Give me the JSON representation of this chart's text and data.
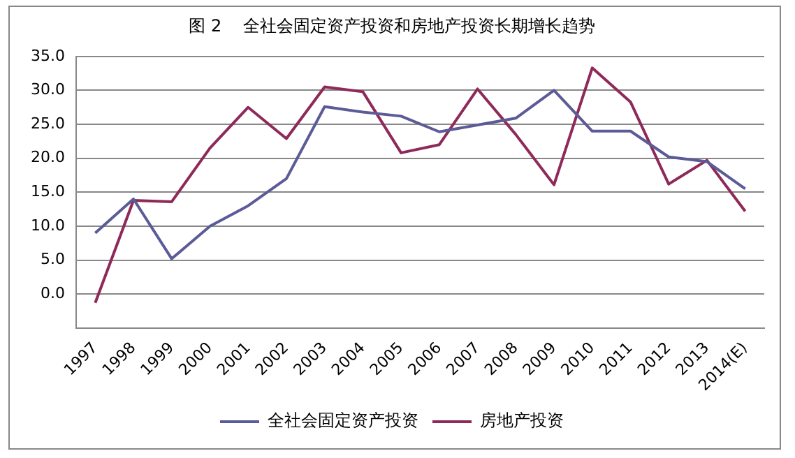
{
  "chart_data": {
    "type": "line",
    "title": "图 2    全社会固定资产投资和房地产投资长期增长趋势",
    "categories": [
      "1997",
      "1998",
      "1999",
      "2000",
      "2001",
      "2002",
      "2003",
      "2004",
      "2005",
      "2006",
      "2007",
      "2008",
      "2009",
      "2010",
      "2011",
      "2012",
      "2013",
      "2014(E)"
    ],
    "series": [
      {
        "name": "全社会固定资产投资",
        "color": "#5b5b97",
        "values": [
          9,
          14,
          5.2,
          10,
          13,
          17,
          27.6,
          26.8,
          26.2,
          23.9,
          24.9,
          25.9,
          30,
          24,
          24,
          20.2,
          19.5,
          15.5
        ]
      },
      {
        "name": "房地产投资",
        "color": "#8e2a5a",
        "values": [
          -1.3,
          13.8,
          13.6,
          21.5,
          27.5,
          22.9,
          30.5,
          29.8,
          20.8,
          22,
          30.2,
          23.5,
          16.1,
          33.3,
          28.3,
          16.2,
          19.7,
          12.2
        ]
      }
    ],
    "ylim": [
      -5,
      35
    ],
    "yticks": [
      {
        "value": 0,
        "label": "0.0"
      },
      {
        "value": 5,
        "label": "5.0"
      },
      {
        "value": 10,
        "label": "10.0"
      },
      {
        "value": 15,
        "label": "15.0"
      },
      {
        "value": 20,
        "label": "20.0"
      },
      {
        "value": 25,
        "label": "25.0"
      },
      {
        "value": 30,
        "label": "30.0"
      },
      {
        "value": 35,
        "label": "35.0"
      }
    ],
    "grid": "y",
    "legend": "bottom",
    "marker": "none",
    "line_style": "solid"
  }
}
